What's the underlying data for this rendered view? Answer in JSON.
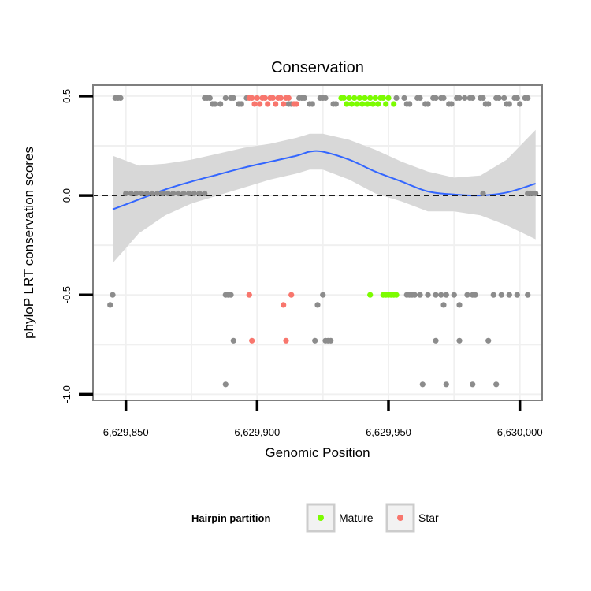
{
  "chart_data": {
    "type": "scatter",
    "title": "Conservation",
    "xlabel": "Genomic Position",
    "ylabel": "phyloP LRT conservation scores",
    "xlim": [
      6629837.5,
      6630008.5
    ],
    "ylim": [
      -1.03,
      0.555
    ],
    "x_ticks": [
      6629850,
      6629900,
      6629950,
      6630000
    ],
    "x_tick_labels": [
      "6,629,850",
      "6,629,900",
      "6,629,950",
      "6,630,000"
    ],
    "y_ticks": [
      -1.0,
      -0.5,
      0.0,
      0.5
    ],
    "y_tick_labels": [
      "-1.0",
      "-0.5",
      "0.0",
      "0.5"
    ],
    "reference_line": {
      "y": 0,
      "style": "dashed"
    },
    "colors": {
      "other": "#8c8c8c",
      "Mature": "#7cfc00",
      "Star": "#f8766d",
      "smooth": "#3366ff",
      "ribbon": "#d6d6d6",
      "panel_border": "#7f7f7f",
      "grid": "#f0f0f0"
    },
    "series": [
      {
        "name": "other",
        "points": [
          [
            6629846,
            0.49
          ],
          [
            6629847,
            0.49
          ],
          [
            6629848,
            0.49
          ],
          [
            6629850,
            0.01
          ],
          [
            6629852,
            0.01
          ],
          [
            6629854,
            0.01
          ],
          [
            6629856,
            0.01
          ],
          [
            6629858,
            0.01
          ],
          [
            6629860,
            0.01
          ],
          [
            6629862,
            0.01
          ],
          [
            6629864,
            0.01
          ],
          [
            6629866,
            0.01
          ],
          [
            6629868,
            0.01
          ],
          [
            6629870,
            0.01
          ],
          [
            6629872,
            0.01
          ],
          [
            6629874,
            0.01
          ],
          [
            6629876,
            0.01
          ],
          [
            6629878,
            0.01
          ],
          [
            6629880,
            0.01
          ],
          [
            6629880,
            0.49
          ],
          [
            6629881,
            0.49
          ],
          [
            6629882,
            0.49
          ],
          [
            6629883,
            0.46
          ],
          [
            6629884,
            0.46
          ],
          [
            6629886,
            0.46
          ],
          [
            6629888,
            0.49
          ],
          [
            6629890,
            0.49
          ],
          [
            6629891,
            0.49
          ],
          [
            6629893,
            0.46
          ],
          [
            6629894,
            0.46
          ],
          [
            6629896,
            0.49
          ],
          [
            6629912,
            0.46
          ],
          [
            6629913,
            0.46
          ],
          [
            6629916,
            0.49
          ],
          [
            6629917,
            0.49
          ],
          [
            6629918,
            0.49
          ],
          [
            6629920,
            0.46
          ],
          [
            6629921,
            0.46
          ],
          [
            6629924,
            0.49
          ],
          [
            6629925,
            0.49
          ],
          [
            6629926,
            0.49
          ],
          [
            6629929,
            0.46
          ],
          [
            6629930,
            0.46
          ],
          [
            6629953,
            0.49
          ],
          [
            6629956,
            0.49
          ],
          [
            6629957,
            0.46
          ],
          [
            6629958,
            0.46
          ],
          [
            6629961,
            0.49
          ],
          [
            6629962,
            0.49
          ],
          [
            6629964,
            0.46
          ],
          [
            6629965,
            0.46
          ],
          [
            6629967,
            0.49
          ],
          [
            6629968,
            0.49
          ],
          [
            6629970,
            0.49
          ],
          [
            6629971,
            0.49
          ],
          [
            6629973,
            0.46
          ],
          [
            6629974,
            0.46
          ],
          [
            6629976,
            0.49
          ],
          [
            6629977,
            0.49
          ],
          [
            6629979,
            0.49
          ],
          [
            6629981,
            0.49
          ],
          [
            6629982,
            0.49
          ],
          [
            6629985,
            0.49
          ],
          [
            6629986,
            0.49
          ],
          [
            6629987,
            0.46
          ],
          [
            6629988,
            0.46
          ],
          [
            6629991,
            0.49
          ],
          [
            6629992,
            0.49
          ],
          [
            6629994,
            0.49
          ],
          [
            6629995,
            0.46
          ],
          [
            6629996,
            0.46
          ],
          [
            6629998,
            0.49
          ],
          [
            6629999,
            0.49
          ],
          [
            6630000,
            0.46
          ],
          [
            6630002,
            0.49
          ],
          [
            6630003,
            0.49
          ],
          [
            6629986,
            0.01
          ],
          [
            6630003,
            0.01
          ],
          [
            6630004,
            0.01
          ],
          [
            6630005,
            0.01
          ],
          [
            6630006,
            0.01
          ],
          [
            6629845,
            -0.5
          ],
          [
            6629844,
            -0.55
          ],
          [
            6629888,
            -0.5
          ],
          [
            6629889,
            -0.5
          ],
          [
            6629890,
            -0.5
          ],
          [
            6629891,
            -0.73
          ],
          [
            6629923,
            -0.55
          ],
          [
            6629925,
            -0.5
          ],
          [
            6629922,
            -0.73
          ],
          [
            6629926,
            -0.73
          ],
          [
            6629927,
            -0.73
          ],
          [
            6629928,
            -0.73
          ],
          [
            6629957,
            -0.5
          ],
          [
            6629958,
            -0.5
          ],
          [
            6629959,
            -0.5
          ],
          [
            6629960,
            -0.5
          ],
          [
            6629962,
            -0.5
          ],
          [
            6629965,
            -0.5
          ],
          [
            6629968,
            -0.5
          ],
          [
            6629970,
            -0.5
          ],
          [
            6629971,
            -0.55
          ],
          [
            6629972,
            -0.5
          ],
          [
            6629975,
            -0.5
          ],
          [
            6629977,
            -0.55
          ],
          [
            6629980,
            -0.5
          ],
          [
            6629982,
            -0.5
          ],
          [
            6629983,
            -0.5
          ],
          [
            6629990,
            -0.5
          ],
          [
            6629993,
            -0.5
          ],
          [
            6629996,
            -0.5
          ],
          [
            6629999,
            -0.5
          ],
          [
            6630003,
            -0.5
          ],
          [
            6629968,
            -0.73
          ],
          [
            6629977,
            -0.73
          ],
          [
            6629988,
            -0.73
          ],
          [
            6629888,
            -0.95
          ],
          [
            6629963,
            -0.95
          ],
          [
            6629972,
            -0.95
          ],
          [
            6629982,
            -0.95
          ],
          [
            6629991,
            -0.95
          ]
        ]
      },
      {
        "name": "Mature",
        "points": [
          [
            6629932,
            0.49
          ],
          [
            6629933,
            0.49
          ],
          [
            6629934,
            0.46
          ],
          [
            6629935,
            0.49
          ],
          [
            6629936,
            0.46
          ],
          [
            6629937,
            0.49
          ],
          [
            6629938,
            0.46
          ],
          [
            6629939,
            0.49
          ],
          [
            6629940,
            0.46
          ],
          [
            6629941,
            0.49
          ],
          [
            6629942,
            0.46
          ],
          [
            6629943,
            0.49
          ],
          [
            6629944,
            0.46
          ],
          [
            6629945,
            0.49
          ],
          [
            6629946,
            0.46
          ],
          [
            6629947,
            0.49
          ],
          [
            6629948,
            0.49
          ],
          [
            6629949,
            0.46
          ],
          [
            6629950,
            0.49
          ],
          [
            6629952,
            0.46
          ],
          [
            6629943,
            -0.5
          ],
          [
            6629948,
            -0.5
          ],
          [
            6629949,
            -0.5
          ],
          [
            6629950,
            -0.5
          ],
          [
            6629951,
            -0.5
          ],
          [
            6629952,
            -0.5
          ],
          [
            6629953,
            -0.5
          ]
        ]
      },
      {
        "name": "Star",
        "points": [
          [
            6629897,
            0.49
          ],
          [
            6629898,
            0.49
          ],
          [
            6629899,
            0.46
          ],
          [
            6629900,
            0.49
          ],
          [
            6629901,
            0.46
          ],
          [
            6629902,
            0.49
          ],
          [
            6629903,
            0.49
          ],
          [
            6629904,
            0.46
          ],
          [
            6629905,
            0.49
          ],
          [
            6629906,
            0.49
          ],
          [
            6629907,
            0.46
          ],
          [
            6629908,
            0.49
          ],
          [
            6629909,
            0.49
          ],
          [
            6629910,
            0.46
          ],
          [
            6629911,
            0.49
          ],
          [
            6629912,
            0.49
          ],
          [
            6629914,
            0.46
          ],
          [
            6629915,
            0.46
          ],
          [
            6629897,
            -0.5
          ],
          [
            6629910,
            -0.55
          ],
          [
            6629913,
            -0.5
          ],
          [
            6629898,
            -0.73
          ],
          [
            6629911,
            -0.73
          ]
        ]
      }
    ],
    "smooth": {
      "x": [
        6629845,
        6629855,
        6629865,
        6629875,
        6629885,
        6629895,
        6629905,
        6629915,
        6629920,
        6629925,
        6629935,
        6629945,
        6629955,
        6629965,
        6629975,
        6629985,
        6629995,
        6630006
      ],
      "y": [
        -0.07,
        -0.02,
        0.03,
        0.07,
        0.105,
        0.14,
        0.17,
        0.2,
        0.22,
        0.22,
        0.18,
        0.12,
        0.07,
        0.02,
        0.005,
        0.0,
        0.015,
        0.06
      ],
      "upper": [
        0.2,
        0.15,
        0.16,
        0.18,
        0.21,
        0.24,
        0.26,
        0.29,
        0.31,
        0.31,
        0.28,
        0.23,
        0.17,
        0.12,
        0.09,
        0.1,
        0.18,
        0.33
      ],
      "lower": [
        -0.34,
        -0.19,
        -0.1,
        -0.04,
        0.0,
        0.04,
        0.08,
        0.11,
        0.13,
        0.13,
        0.08,
        0.01,
        -0.03,
        -0.08,
        -0.08,
        -0.1,
        -0.15,
        -0.22
      ]
    },
    "legend": {
      "title": "Hairpin partition",
      "position": "bottom",
      "entries": [
        {
          "label": "Mature",
          "color": "#7cfc00"
        },
        {
          "label": "Star",
          "color": "#f8766d"
        }
      ]
    }
  }
}
